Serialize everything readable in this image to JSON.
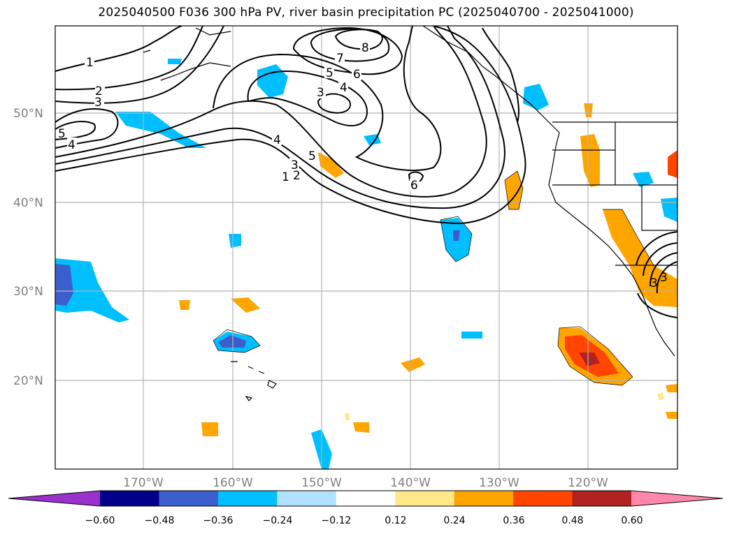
{
  "title": "2025040500 F036 300 hPa PV, river basin precipitation PC (2025040700 - 2025041000)",
  "lat_labels": [
    "50°N",
    "40°N",
    "30°N",
    "20°N"
  ],
  "lon_labels": [
    "170°W",
    "160°W",
    "150°W",
    "140°W",
    "130°W",
    "120°W"
  ],
  "colorbar": {
    "ticks": [
      "−0.60",
      "−0.48",
      "−0.36",
      "−0.24",
      "−0.12",
      "0.12",
      "0.24",
      "0.36",
      "0.48",
      "0.60"
    ],
    "colors": [
      "#9932cc",
      "#00008b",
      "#3a5fcd",
      "#00bfff",
      "#b0e2ff",
      "#ffffff",
      "#ffe88a",
      "#ffa500",
      "#ff4500",
      "#b22222",
      "#ff88aa"
    ]
  },
  "contour_labels": [
    "1",
    "2",
    "3",
    "5",
    "4",
    "7",
    "8",
    "5",
    "6",
    "3",
    "4",
    "4",
    "5",
    "3",
    "2",
    "1",
    "6",
    "3",
    "3"
  ]
}
